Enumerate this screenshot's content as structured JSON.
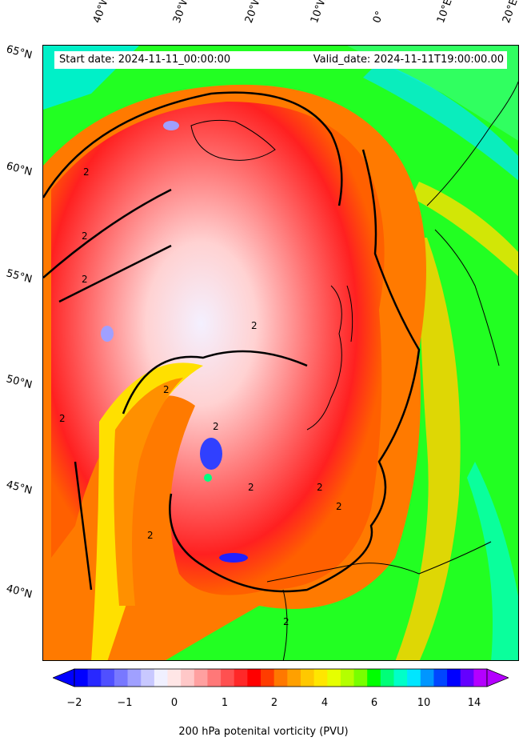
{
  "header": {
    "start_date": "Start date: 2024-11-11_00:00:00",
    "valid_date": "Valid_date: 2024-11-11T19:00:00.00"
  },
  "lat_labels": [
    "65°N",
    "60°N",
    "55°N",
    "50°N",
    "45°N",
    "40°N"
  ],
  "lon_labels": [
    "40°W",
    "30°W",
    "20°W",
    "10°W",
    "0°",
    "10°E",
    "20°E"
  ],
  "colorbar": {
    "label": "200 hPa potenital vorticity (PVU)",
    "ticks": [
      "−2",
      "−1",
      "0",
      "1",
      "2",
      "4",
      "6",
      "10",
      "14"
    ],
    "colors": [
      "#0000ff",
      "#2828ff",
      "#5050ff",
      "#7878ff",
      "#a0a0ff",
      "#c8c8ff",
      "#f0f0ff",
      "#ffe6e6",
      "#ffc8c8",
      "#ffa0a0",
      "#ff7878",
      "#ff5050",
      "#ff2828",
      "#ff0000",
      "#ff3c00",
      "#ff7800",
      "#ffa000",
      "#ffc800",
      "#ffe600",
      "#e6ff00",
      "#b4ff00",
      "#78ff00",
      "#00ff00",
      "#00ff78",
      "#00ffc8",
      "#00e6ff",
      "#0096ff",
      "#0046ff",
      "#0000ff",
      "#6400ff",
      "#b400ff"
    ],
    "under_color": "#0000ff",
    "over_color": "#b400ff"
  },
  "contour_label": "2"
}
